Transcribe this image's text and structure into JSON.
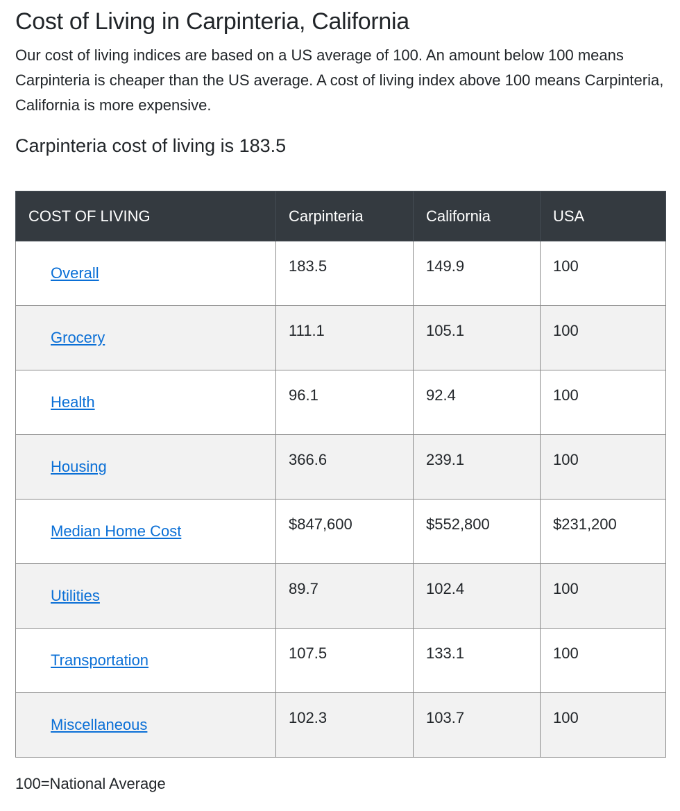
{
  "heading": "Cost of Living in Carpinteria, California",
  "intro": "Our cost of living indices are based on a US average of 100. An amount below 100 means Carpinteria is cheaper than the US average. A cost of living index above 100 means Carpinteria, California is more expensive.",
  "subheading": "Carpinteria cost of living is 183.5",
  "table": {
    "headers": [
      "COST OF LIVING",
      "Carpinteria",
      "California",
      "USA"
    ],
    "rows": [
      {
        "label": "Overall",
        "carpinteria": "183.5",
        "california": "149.9",
        "usa": "100"
      },
      {
        "label": "Grocery",
        "carpinteria": "111.1",
        "california": "105.1",
        "usa": "100"
      },
      {
        "label": "Health",
        "carpinteria": "96.1",
        "california": "92.4",
        "usa": "100"
      },
      {
        "label": "Housing",
        "carpinteria": "366.6",
        "california": "239.1",
        "usa": "100"
      },
      {
        "label": "Median Home Cost",
        "carpinteria": "$847,600",
        "california": "$552,800",
        "usa": "$231,200"
      },
      {
        "label": "Utilities",
        "carpinteria": "89.7",
        "california": "102.4",
        "usa": "100"
      },
      {
        "label": "Transportation",
        "carpinteria": "107.5",
        "california": "133.1",
        "usa": "100"
      },
      {
        "label": "Miscellaneous",
        "carpinteria": "102.3",
        "california": "103.7",
        "usa": "100"
      }
    ]
  },
  "footnote": "100=National Average",
  "colors": {
    "header_bg": "#343a40",
    "link": "#0a6fd6",
    "stripe": "#f2f2f2"
  }
}
